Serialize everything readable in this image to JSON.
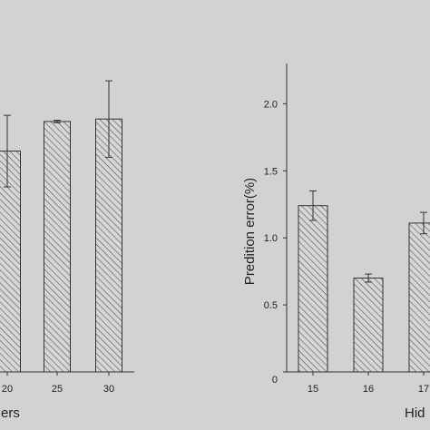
{
  "colors": {
    "background": "#d2d2d2",
    "axis": "#333333",
    "bar_fill": "#d6d6d6",
    "bar_hatch": "#555555"
  },
  "chart_data": [
    {
      "type": "bar",
      "x_ticks": [
        "20",
        "25",
        "30"
      ],
      "categories": [
        "20",
        "25",
        "30"
      ],
      "values": [
        1.79,
        2.03,
        2.05
      ],
      "errors": [
        0.29,
        0.01,
        0.31
      ],
      "xlabel": "ers",
      "ylabel": "",
      "ylim": [
        0,
        2.5
      ],
      "y_ticks": [],
      "legend": "none",
      "grid": false
    },
    {
      "type": "bar",
      "x_ticks": [
        "15",
        "16",
        "17"
      ],
      "categories": [
        "15",
        "16",
        "17"
      ],
      "values": [
        1.24,
        0.7,
        1.11
      ],
      "errors": [
        0.11,
        0.03,
        0.08
      ],
      "xlabel": "Hid",
      "ylabel": "Predition error(%)",
      "ylim": [
        0,
        2.3
      ],
      "y_ticks": [
        "0",
        "0.5",
        "1.0",
        "1.5",
        "2.0"
      ],
      "y_tick_values": [
        0,
        0.5,
        1.0,
        1.5,
        2.0
      ],
      "legend": "none",
      "grid": false
    }
  ]
}
